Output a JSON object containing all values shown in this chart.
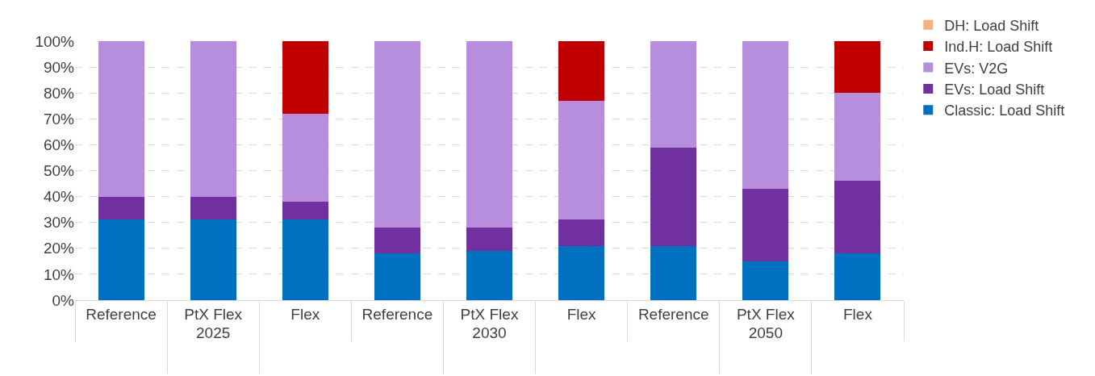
{
  "chart_data": {
    "type": "bar",
    "stacked": true,
    "categories": [
      "Reference",
      "PtX Flex",
      "Flex",
      "Reference",
      "PtX Flex",
      "Flex",
      "Reference",
      "PtX Flex",
      "Flex"
    ],
    "annotations": [
      "2025",
      "2030",
      "2050"
    ],
    "series": [
      {
        "name": "Classic: Load Shift",
        "color": "#0070c0",
        "values": [
          31,
          31,
          31,
          18,
          19,
          21,
          21,
          15,
          18
        ]
      },
      {
        "name": "EVs: Load Shift",
        "color": "#7030a0",
        "values": [
          9,
          9,
          7,
          10,
          9,
          10,
          38,
          28,
          28
        ]
      },
      {
        "name": "EVs: V2G",
        "color": "#b78ede",
        "values": [
          60,
          60,
          34,
          72,
          72,
          46,
          41,
          57,
          34
        ]
      },
      {
        "name": "Ind.H: Load Shift",
        "color": "#c00000",
        "values": [
          0,
          0,
          28,
          0,
          0,
          23,
          0,
          0,
          20
        ]
      },
      {
        "name": "DH: Load Shift",
        "color": "#f4b183",
        "values": [
          0,
          0,
          0,
          0,
          0,
          0,
          0,
          0,
          0
        ]
      }
    ],
    "ylim": [
      0,
      100
    ],
    "yticks": [
      {
        "value": 0,
        "label": "0%"
      },
      {
        "value": 10,
        "label": "10%"
      },
      {
        "value": 20,
        "label": "20%"
      },
      {
        "value": 30,
        "label": "30%"
      },
      {
        "value": 40,
        "label": "40%"
      },
      {
        "value": 50,
        "label": "50%"
      },
      {
        "value": 60,
        "label": "60%"
      },
      {
        "value": 70,
        "label": "70%"
      },
      {
        "value": 80,
        "label": "80%"
      },
      {
        "value": 90,
        "label": "90%"
      },
      {
        "value": 100,
        "label": "100%"
      }
    ],
    "grid": "y",
    "legend": "top right"
  }
}
